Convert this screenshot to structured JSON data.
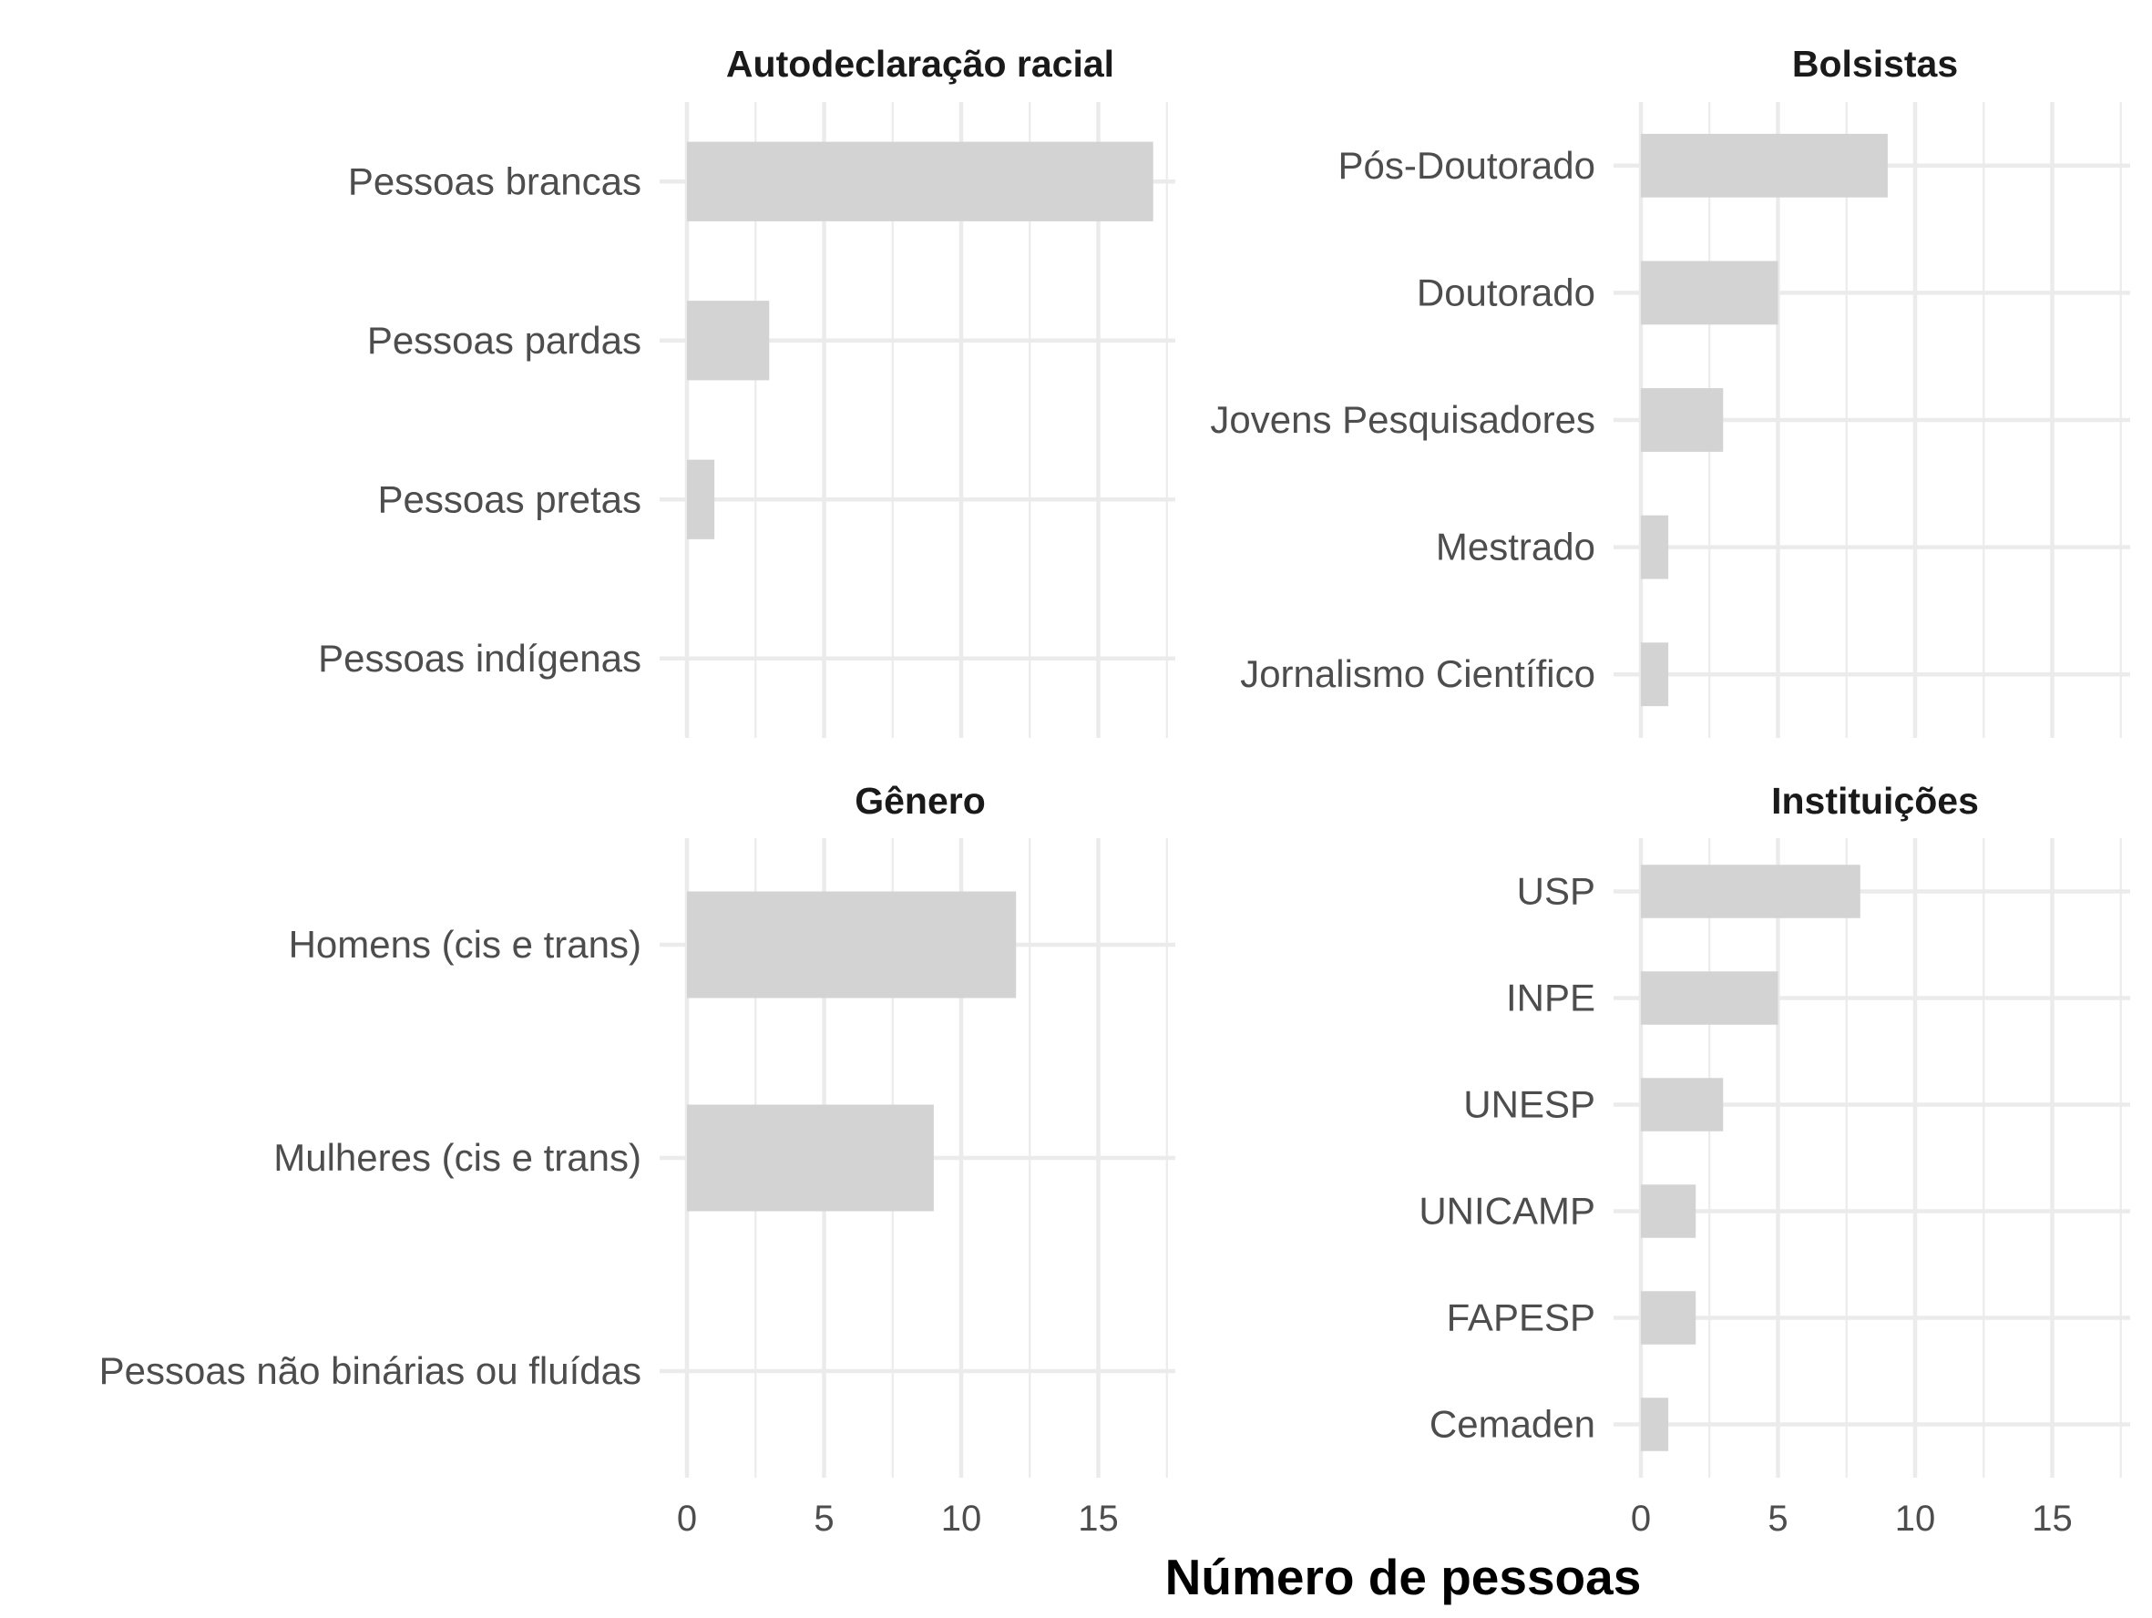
{
  "chart_data": [
    {
      "type": "bar",
      "orientation": "horizontal",
      "title": "Autodeclaração racial",
      "categories": [
        "Pessoas brancas",
        "Pessoas pardas",
        "Pessoas pretas",
        "Pessoas indígenas"
      ],
      "values": [
        17,
        3,
        1,
        0
      ],
      "xlim": [
        0,
        17.8
      ],
      "xticks": [
        0,
        5,
        10,
        15
      ],
      "show_xticks": false,
      "bar_color": "#d3d3d3"
    },
    {
      "type": "bar",
      "orientation": "horizontal",
      "title": "Bolsistas",
      "categories": [
        "Pós-Doutorado",
        "Doutorado",
        "Jovens Pesquisadores",
        "Mestrado",
        "Jornalismo Científico"
      ],
      "values": [
        9,
        5,
        3,
        1,
        1
      ],
      "xlim": [
        0,
        17.8
      ],
      "xticks": [
        0,
        5,
        10,
        15
      ],
      "show_xticks": false,
      "bar_color": "#d3d3d3"
    },
    {
      "type": "bar",
      "orientation": "horizontal",
      "title": "Gênero",
      "categories": [
        "Homens (cis e trans)",
        "Mulheres (cis e trans)",
        "Pessoas não binárias ou fluídas"
      ],
      "values": [
        12,
        9,
        0
      ],
      "xlim": [
        0,
        17.8
      ],
      "xticks": [
        0,
        5,
        10,
        15
      ],
      "show_xticks": true,
      "bar_color": "#d3d3d3"
    },
    {
      "type": "bar",
      "orientation": "horizontal",
      "title": "Instituições",
      "categories": [
        "USP",
        "INPE",
        "UNESP",
        "UNICAMP",
        "FAPESP",
        "Cemaden"
      ],
      "values": [
        8,
        5,
        3,
        2,
        2,
        1
      ],
      "xlim": [
        0,
        17.8
      ],
      "xticks": [
        0,
        5,
        10,
        15
      ],
      "show_xticks": true,
      "bar_color": "#d3d3d3"
    }
  ],
  "xlabel": "Número de pessoas",
  "grid": true
}
